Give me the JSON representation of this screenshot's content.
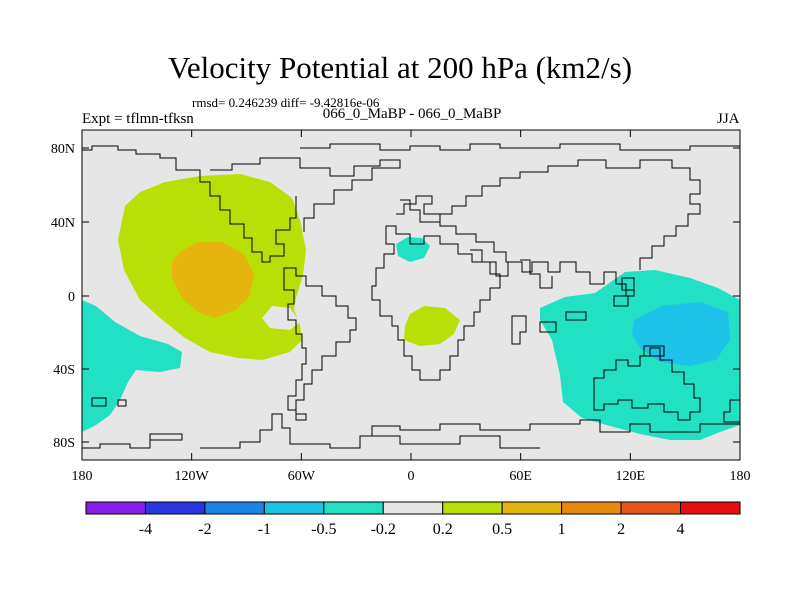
{
  "title": "Velocity Potential at 200 hPa (km2/s)",
  "stats": "rmsd= 0.246239 diff= -9.42816e-06",
  "experiment": "Expt = tflmn-tfksn",
  "runs": "066_0_MaBP - 066_0_MaBP",
  "season": "JJA",
  "latitude_ticks": [
    "80N",
    "40N",
    "0",
    "40S",
    "80S"
  ],
  "longitude_ticks": [
    "180",
    "120W",
    "60W",
    "0",
    "60E",
    "120E",
    "180"
  ],
  "colorbar": {
    "colors": [
      "#8a1ee6",
      "#2a36e0",
      "#1c86e6",
      "#1cc2e8",
      "#22e0c4",
      "#e6e6e6",
      "#b8e006",
      "#e6b40e",
      "#e68a0e",
      "#e6561a",
      "#e60e0e"
    ],
    "labels": [
      "-4",
      "-2",
      "-1",
      "-0.5",
      "-0.2",
      "0.2",
      "0.5",
      "1",
      "2",
      "4"
    ]
  },
  "colors": {
    "background": "#e6e6e6",
    "neg_0_2_to_0_5": "#22e0c4",
    "neg_0_5_to_1": "#1cc2e8",
    "pos_0_2_to_0_5": "#b8e006",
    "pos_0_5_to_1": "#e6b40e"
  }
}
